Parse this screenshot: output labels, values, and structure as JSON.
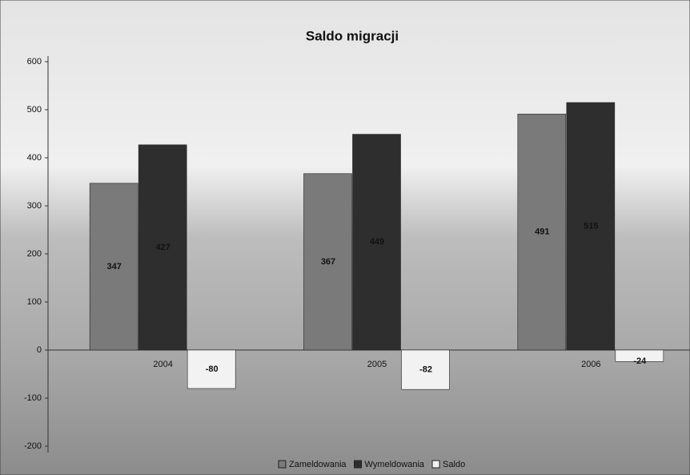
{
  "chart_data": {
    "type": "bar",
    "title": "Saldo migracji",
    "categories": [
      "2004",
      "2005",
      "2006"
    ],
    "series": [
      {
        "name": "Zameldowania",
        "color": "#7a7a7a",
        "values": [
          347,
          367,
          491
        ]
      },
      {
        "name": "Wymeldowania",
        "color": "#2e2e2e",
        "values": [
          427,
          449,
          515
        ]
      },
      {
        "name": "Saldo",
        "color": "#f2f2f2",
        "values": [
          -80,
          -82,
          -24
        ]
      }
    ],
    "ylim": [
      -200,
      600
    ],
    "yticks": [
      -200,
      -100,
      0,
      100,
      200,
      300,
      400,
      500,
      600
    ],
    "legend": "bottom"
  }
}
